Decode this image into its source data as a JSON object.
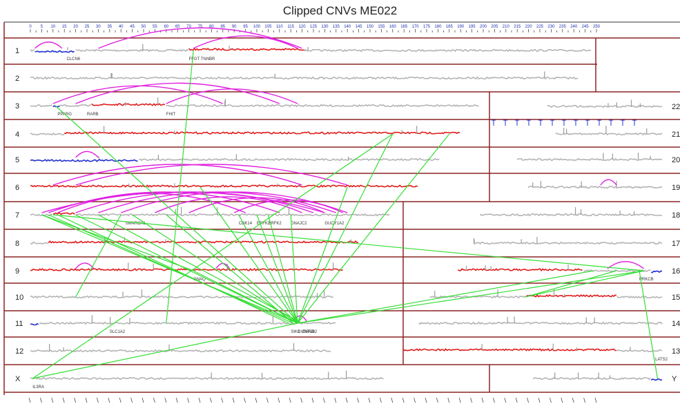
{
  "title": "Clipped CNVs ME022",
  "chart_data": {
    "type": "scatter",
    "title": "Clipped CNVs ME022",
    "xlabel": "",
    "ylabel": "",
    "x_axis": {
      "unit": "Mb",
      "xlim": [
        0,
        250
      ],
      "step": 5,
      "ticks": [
        0,
        5,
        10,
        15,
        20,
        25,
        30,
        35,
        40,
        45,
        50,
        55,
        60,
        65,
        70,
        75,
        80,
        85,
        90,
        95,
        100,
        105,
        110,
        115,
        120,
        125,
        130,
        135,
        140,
        145,
        150,
        155,
        160,
        165,
        170,
        175,
        180,
        185,
        190,
        195,
        200,
        205,
        210,
        215,
        220,
        225,
        230,
        235,
        240,
        245,
        250
      ]
    },
    "legend": "none",
    "colors": {
      "neutral": "#b4b4b4",
      "gain": "#e01b1b",
      "loss": "#1f2fd0",
      "intra_link": "#e020e0",
      "inter_link": "#33dd33",
      "border": "#8b2323"
    },
    "chromosomes": [
      {
        "name": "1",
        "length": 248,
        "segments": [
          {
            "start": 0,
            "end": 2,
            "state": "neutral"
          },
          {
            "start": 2,
            "end": 20,
            "state": "loss"
          },
          {
            "start": 20,
            "end": 70,
            "state": "neutral"
          },
          {
            "start": 70,
            "end": 121,
            "state": "gain"
          },
          {
            "start": 121,
            "end": 248,
            "state": "neutral"
          }
        ]
      },
      {
        "name": "2",
        "length": 242,
        "segments": [
          {
            "start": 0,
            "end": 242,
            "state": "neutral"
          }
        ]
      },
      {
        "name": "3",
        "length": 198,
        "segments": [
          {
            "start": 0,
            "end": 10,
            "state": "neutral"
          },
          {
            "start": 10,
            "end": 13,
            "state": "loss"
          },
          {
            "start": 13,
            "end": 27,
            "state": "neutral"
          },
          {
            "start": 27,
            "end": 60,
            "state": "gain"
          },
          {
            "start": 60,
            "end": 198,
            "state": "neutral"
          }
        ]
      },
      {
        "name": "4",
        "length": 190,
        "segments": [
          {
            "start": 0,
            "end": 15,
            "state": "neutral"
          },
          {
            "start": 15,
            "end": 190,
            "state": "gain"
          }
        ]
      },
      {
        "name": "5",
        "length": 181,
        "segments": [
          {
            "start": 0,
            "end": 48,
            "state": "loss"
          },
          {
            "start": 48,
            "end": 181,
            "state": "neutral"
          }
        ]
      },
      {
        "name": "6",
        "length": 171,
        "segments": [
          {
            "start": 0,
            "end": 171,
            "state": "gain"
          }
        ]
      },
      {
        "name": "7",
        "length": 159,
        "segments": [
          {
            "start": 0,
            "end": 10,
            "state": "neutral"
          },
          {
            "start": 10,
            "end": 20,
            "state": "gain"
          },
          {
            "start": 20,
            "end": 159,
            "state": "neutral"
          }
        ]
      },
      {
        "name": "8",
        "length": 145,
        "segments": [
          {
            "start": 0,
            "end": 8,
            "state": "neutral"
          },
          {
            "start": 8,
            "end": 145,
            "state": "gain"
          }
        ]
      },
      {
        "name": "9",
        "length": 138,
        "segments": [
          {
            "start": 0,
            "end": 138,
            "state": "gain"
          }
        ]
      },
      {
        "name": "10",
        "length": 134,
        "segments": [
          {
            "start": 0,
            "end": 134,
            "state": "neutral"
          }
        ]
      },
      {
        "name": "11",
        "length": 135,
        "segments": [
          {
            "start": 0,
            "end": 4,
            "state": "loss"
          },
          {
            "start": 4,
            "end": 135,
            "state": "neutral"
          }
        ]
      },
      {
        "name": "12",
        "length": 133,
        "segments": [
          {
            "start": 0,
            "end": 133,
            "state": "neutral"
          }
        ]
      },
      {
        "name": "13",
        "length": 114,
        "segments": [
          {
            "start": 0,
            "end": 20,
            "state": "neutral"
          },
          {
            "start": 20,
            "end": 114,
            "state": "gain"
          }
        ]
      },
      {
        "name": "14",
        "length": 107,
        "segments": [
          {
            "start": 0,
            "end": 107,
            "state": "neutral"
          }
        ]
      },
      {
        "name": "15",
        "length": 102,
        "segments": [
          {
            "start": 0,
            "end": 20,
            "state": "neutral"
          },
          {
            "start": 20,
            "end": 60,
            "state": "gain"
          },
          {
            "start": 60,
            "end": 102,
            "state": "neutral"
          }
        ]
      },
      {
        "name": "16",
        "length": 90,
        "segments": [
          {
            "start": 0,
            "end": 5,
            "state": "loss"
          },
          {
            "start": 5,
            "end": 35,
            "state": "neutral"
          },
          {
            "start": 35,
            "end": 90,
            "state": "gain"
          }
        ]
      },
      {
        "name": "17",
        "length": 83,
        "segments": [
          {
            "start": 0,
            "end": 83,
            "state": "neutral"
          }
        ]
      },
      {
        "name": "18",
        "length": 80,
        "segments": [
          {
            "start": 0,
            "end": 80,
            "state": "neutral"
          }
        ]
      },
      {
        "name": "19",
        "length": 59,
        "segments": [
          {
            "start": 0,
            "end": 59,
            "state": "neutral"
          }
        ]
      },
      {
        "name": "20",
        "length": 64,
        "segments": [
          {
            "start": 0,
            "end": 64,
            "state": "neutral"
          }
        ]
      },
      {
        "name": "21",
        "length": 47,
        "segments": [
          {
            "start": 0,
            "end": 47,
            "state": "neutral"
          }
        ]
      },
      {
        "name": "22",
        "length": 51,
        "segments": [
          {
            "start": 0,
            "end": 51,
            "state": "neutral"
          }
        ]
      },
      {
        "name": "X",
        "length": 156,
        "segments": [
          {
            "start": 0,
            "end": 156,
            "state": "neutral"
          }
        ]
      },
      {
        "name": "Y",
        "length": 57,
        "segments": [
          {
            "start": 0,
            "end": 5,
            "state": "loss"
          },
          {
            "start": 5,
            "end": 57,
            "state": "neutral"
          }
        ]
      }
    ],
    "gene_labels": [
      {
        "chrom": "1",
        "pos": 16,
        "text": "CLCN6"
      },
      {
        "chrom": "1",
        "pos": 70,
        "text": "FFGT TNNBR"
      },
      {
        "chrom": "3",
        "pos": 12,
        "text": "PPARG"
      },
      {
        "chrom": "3",
        "pos": 25,
        "text": "RARB"
      },
      {
        "chrom": "3",
        "pos": 60,
        "text": "FHIT"
      },
      {
        "chrom": "7",
        "pos": 42,
        "text": "SMARCA1"
      },
      {
        "chrom": "7",
        "pos": 92,
        "text": "CDK14"
      },
      {
        "chrom": "7",
        "pos": 100,
        "text": "ERFK2"
      },
      {
        "chrom": "7",
        "pos": 105,
        "text": "SRFK2"
      },
      {
        "chrom": "7",
        "pos": 115,
        "text": "DNAJC2"
      },
      {
        "chrom": "7",
        "pos": 130,
        "text": "GUCY1A2"
      },
      {
        "chrom": "9",
        "pos": 72,
        "text": "GNAQ"
      },
      {
        "chrom": "11",
        "pos": 35,
        "text": "SLC1A2"
      },
      {
        "chrom": "11",
        "pos": 115,
        "text": "SIK3"
      },
      {
        "chrom": "11",
        "pos": 118,
        "text": "CHSPAB"
      },
      {
        "chrom": "11",
        "pos": 120,
        "text": "ZNF202"
      },
      {
        "chrom": "13",
        "pos": 3,
        "text": "LATS2"
      },
      {
        "chrom": "16",
        "pos": 10,
        "text": "PRKCB"
      },
      {
        "chrom": "X",
        "pos": 1,
        "text": "IL3RA"
      }
    ],
    "intra_links": [
      {
        "chrom": "1",
        "pos1": 2,
        "pos2": 14
      },
      {
        "chrom": "1",
        "pos1": 30,
        "pos2": 120
      },
      {
        "chrom": "1",
        "pos1": 72,
        "pos2": 118
      },
      {
        "chrom": "3",
        "pos1": 10,
        "pos2": 85
      },
      {
        "chrom": "3",
        "pos1": 20,
        "pos2": 110
      },
      {
        "chrom": "3",
        "pos1": 60,
        "pos2": 118
      },
      {
        "chrom": "5",
        "pos1": 20,
        "pos2": 30
      },
      {
        "chrom": "6",
        "pos1": 10,
        "pos2": 120
      },
      {
        "chrom": "6",
        "pos1": 20,
        "pos2": 140
      },
      {
        "chrom": "7",
        "pos1": 5,
        "pos2": 130
      },
      {
        "chrom": "7",
        "pos1": 8,
        "pos2": 110
      },
      {
        "chrom": "7",
        "pos1": 12,
        "pos2": 95
      },
      {
        "chrom": "7",
        "pos1": 20,
        "pos2": 125
      },
      {
        "chrom": "7",
        "pos1": 30,
        "pos2": 135
      },
      {
        "chrom": "7",
        "pos1": 40,
        "pos2": 140
      },
      {
        "chrom": "7",
        "pos1": 55,
        "pos2": 120
      },
      {
        "chrom": "7",
        "pos1": 70,
        "pos2": 130
      },
      {
        "chrom": "7",
        "pos1": 90,
        "pos2": 138
      },
      {
        "chrom": "9",
        "pos1": 20,
        "pos2": 28
      },
      {
        "chrom": "9",
        "pos1": 82,
        "pos2": 88
      },
      {
        "chrom": "11",
        "pos1": 116,
        "pos2": 122
      },
      {
        "chrom": "16",
        "pos1": 8,
        "pos2": 24
      },
      {
        "chrom": "19",
        "pos1": 20,
        "pos2": 27
      }
    ],
    "inter_links": [
      {
        "chrom1": "3",
        "pos1": 11,
        "chrom2": "11",
        "pos2": 118
      },
      {
        "chrom1": "1",
        "pos1": 72,
        "chrom2": "11",
        "pos2": 60
      },
      {
        "chrom1": "4",
        "pos1": 160,
        "chrom2": "11",
        "pos2": 118
      },
      {
        "chrom1": "4",
        "pos1": 185,
        "chrom2": "11",
        "pos2": 118
      },
      {
        "chrom1": "6",
        "pos1": 75,
        "chrom2": "11",
        "pos2": 118
      },
      {
        "chrom1": "6",
        "pos1": 140,
        "chrom2": "11",
        "pos2": 118
      },
      {
        "chrom1": "7",
        "pos1": 5,
        "chrom2": "11",
        "pos2": 118
      },
      {
        "chrom1": "7",
        "pos1": 8,
        "chrom2": "11",
        "pos2": 116
      },
      {
        "chrom1": "7",
        "pos1": 12,
        "chrom2": "11",
        "pos2": 114
      },
      {
        "chrom1": "7",
        "pos1": 20,
        "chrom2": "11",
        "pos2": 118
      },
      {
        "chrom1": "7",
        "pos1": 30,
        "chrom2": "11",
        "pos2": 120
      },
      {
        "chrom1": "7",
        "pos1": 45,
        "chrom2": "11",
        "pos2": 118
      },
      {
        "chrom1": "7",
        "pos1": 60,
        "chrom2": "11",
        "pos2": 116
      },
      {
        "chrom1": "7",
        "pos1": 92,
        "chrom2": "11",
        "pos2": 118
      },
      {
        "chrom1": "7",
        "pos1": 100,
        "chrom2": "11",
        "pos2": 118
      },
      {
        "chrom1": "7",
        "pos1": 105,
        "chrom2": "11",
        "pos2": 118
      },
      {
        "chrom1": "7",
        "pos1": 115,
        "chrom2": "11",
        "pos2": 118
      },
      {
        "chrom1": "7",
        "pos1": 5,
        "chrom2": "9",
        "pos2": 72
      },
      {
        "chrom1": "7",
        "pos1": 10,
        "chrom2": "16",
        "pos2": 8
      },
      {
        "chrom1": "9",
        "pos1": 72,
        "chrom2": "11",
        "pos2": 118
      },
      {
        "chrom1": "10",
        "pos1": 20,
        "chrom2": "7",
        "pos2": 40
      },
      {
        "chrom1": "11",
        "pos1": 118,
        "chrom2": "16",
        "pos2": 8
      },
      {
        "chrom1": "11",
        "pos1": 118,
        "chrom2": "16",
        "pos2": 30
      },
      {
        "chrom1": "16",
        "pos1": 8,
        "chrom2": "15",
        "pos2": 60
      },
      {
        "chrom1": "16",
        "pos1": 20,
        "chrom2": "15",
        "pos2": 60
      },
      {
        "chrom1": "16",
        "pos1": 10,
        "chrom2": "Y",
        "pos2": 2
      },
      {
        "chrom1": "X",
        "pos1": 1,
        "chrom2": "4",
        "pos2": 160
      },
      {
        "chrom1": "X",
        "pos1": 1,
        "chrom2": "11",
        "pos2": 118
      }
    ]
  }
}
